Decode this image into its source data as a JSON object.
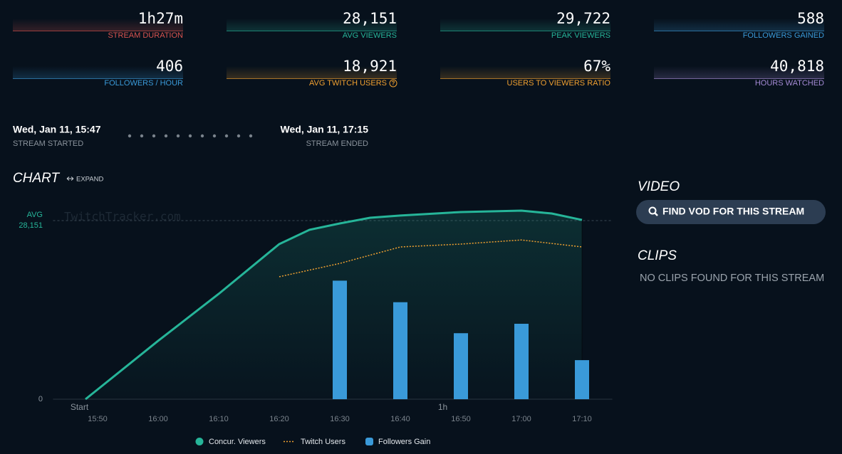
{
  "stats": [
    {
      "value": "1h27m",
      "label": "STREAM DURATION",
      "color": "#d9534f"
    },
    {
      "value": "28,151",
      "label": "AVG VIEWERS",
      "color": "#26b599"
    },
    {
      "value": "29,722",
      "label": "PEAK VIEWERS",
      "color": "#26b599"
    },
    {
      "value": "588",
      "label": "FOLLOWERS GAINED",
      "color": "#3a9ad9"
    },
    {
      "value": "406",
      "label": "FOLLOWERS / HOUR",
      "color": "#3a9ad9"
    },
    {
      "value": "18,921",
      "label": "AVG TWITCH USERS",
      "color": "#f0a030"
    },
    {
      "value": "67%",
      "label": "USERS TO VIEWERS RATIO",
      "color": "#f0a030"
    },
    {
      "value": "40,818",
      "label": "HOURS WATCHED",
      "color": "#a58bd6"
    }
  ],
  "stream": {
    "start": {
      "time": "Wed, Jan 11, 15:47",
      "label": "STREAM STARTED"
    },
    "end": {
      "time": "Wed, Jan 11, 17:15",
      "label": "STREAM ENDED"
    }
  },
  "chart_data": {
    "type": "line",
    "title": "CHART",
    "expand": "EXPAND",
    "watermark": "TwitchTracker.com",
    "xlim": [
      "15:43",
      "17:15"
    ],
    "xticks": [
      "15:50",
      "16:00",
      "16:10",
      "16:20",
      "16:30",
      "16:40",
      "16:50",
      "17:00",
      "17:10"
    ],
    "elapsed_ticks": [
      {
        "value": "15:47",
        "label": "Start"
      },
      {
        "value": "16:47",
        "label": "1h"
      }
    ],
    "ylim": [
      0,
      31000
    ],
    "yticks": [
      0
    ],
    "y2lim": [
      0,
      292
    ],
    "avg": {
      "label": "AVG",
      "value": 28151,
      "value_label": "28,151"
    },
    "series": [
      {
        "name": "Concur. Viewers",
        "color": "#26b599",
        "x": [
          "15:48",
          "16:00",
          "16:10",
          "16:20",
          "16:25",
          "16:30",
          "16:35",
          "16:40",
          "16:50",
          "17:00",
          "17:05",
          "17:10"
        ],
        "values": [
          0,
          9200,
          16600,
          24450,
          26700,
          27700,
          28600,
          28950,
          29500,
          29722,
          29270,
          28260
        ]
      },
      {
        "name": "Twitch Users",
        "color": "#f0a030",
        "x": [
          "16:20",
          "16:30",
          "16:40",
          "16:50",
          "17:00",
          "17:10"
        ],
        "values": [
          19300,
          21400,
          24000,
          24450,
          25100,
          24000
        ]
      },
      {
        "name": "Followers Gain",
        "color": "#3a9ad9",
        "axis": "y2",
        "type": "bar",
        "x": [
          "16:30",
          "16:40",
          "16:50",
          "17:00",
          "17:10"
        ],
        "values": [
          176,
          144,
          98,
          112,
          58
        ]
      }
    ]
  },
  "video": {
    "title": "VIDEO",
    "button": "FIND VOD FOR THIS STREAM"
  },
  "clips": {
    "title": "CLIPS",
    "message": "NO CLIPS FOUND FOR THIS STREAM"
  }
}
